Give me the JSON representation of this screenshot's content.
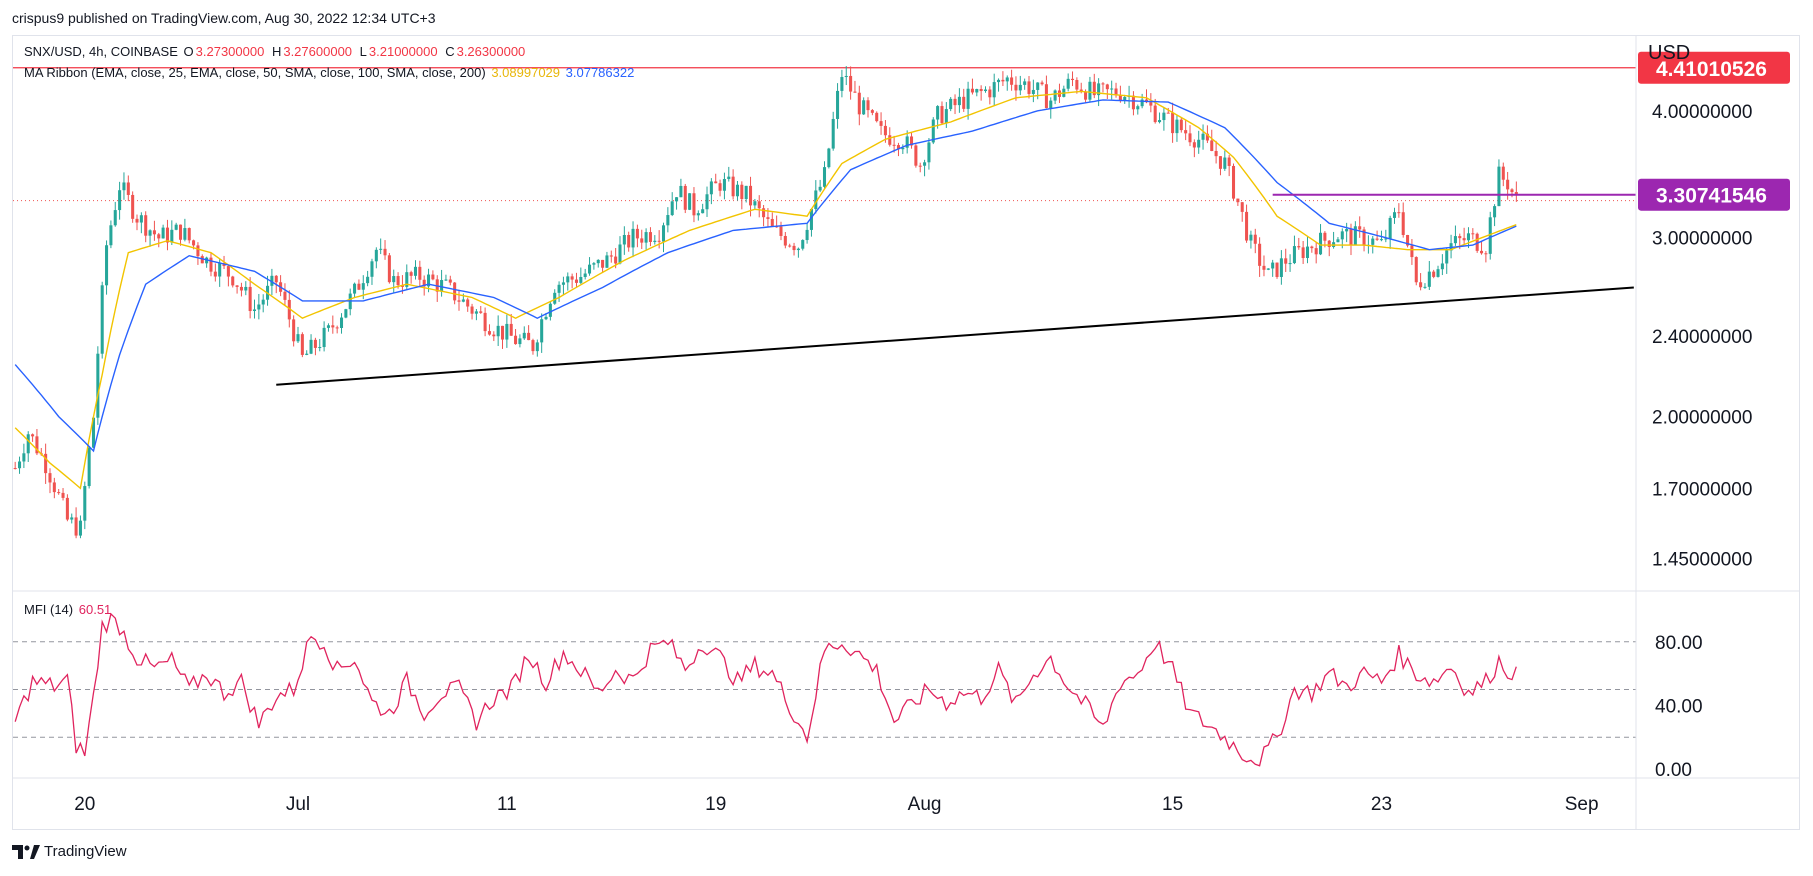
{
  "publisher": "crispus9 published on TradingView.com, Aug 30, 2022 12:34 UTC+3",
  "footer": {
    "brand": "TradingView"
  },
  "legend": {
    "symbol": "SNX/USD, 4h, COINBASE",
    "ohlc": [
      {
        "key": "O",
        "value": "3.27300000"
      },
      {
        "key": "H",
        "value": "3.27600000"
      },
      {
        "key": "L",
        "value": "3.21000000"
      },
      {
        "key": "C",
        "value": "3.26300000"
      }
    ],
    "ma_label": "MA Ribbon (EMA, close, 25, EMA, close, 50, SMA, close, 100, SMA, close, 200)",
    "ma_value_1": "3.08997029",
    "ma_value_2": "3.07786322",
    "mfi_label": "MFI (14)",
    "mfi_value": "60.51"
  },
  "colors": {
    "up": "#26a69a",
    "down": "#ef5350",
    "ema25": "#f2c400",
    "ema50": "#2962ff",
    "resistance": "#f23645",
    "range_line": "#9c27b0",
    "trendline": "#000000",
    "mfi": "#e0245e",
    "grid_dash": "#787b86"
  },
  "price_axis": {
    "currency": "USD",
    "ticks": [
      "4.00000000",
      "3.00000000",
      "2.40000000",
      "2.00000000",
      "1.70000000",
      "1.45000000"
    ],
    "tick_values": [
      4.0,
      3.0,
      2.4,
      2.0,
      1.7,
      1.45
    ],
    "badges": [
      {
        "label": "4.41010526",
        "value": 4.41010526,
        "color": "#f23645"
      },
      {
        "label": "3.30741546",
        "value": 3.30741546,
        "color": "#9c27b0"
      }
    ]
  },
  "mfi_axis": {
    "ticks": [
      "80.00",
      "40.00",
      "0.00"
    ],
    "tick_values": [
      80,
      40,
      0
    ],
    "bands": [
      80,
      50,
      20
    ]
  },
  "time_axis": {
    "labels": [
      {
        "text": "20",
        "bar": 16
      },
      {
        "text": "Jul",
        "bar": 65
      },
      {
        "text": "11",
        "bar": 113
      },
      {
        "text": "19",
        "bar": 161
      },
      {
        "text": "Aug",
        "bar": 209
      },
      {
        "text": "15",
        "bar": 266
      },
      {
        "text": "23",
        "bar": 314
      },
      {
        "text": "Sep",
        "bar": 360
      }
    ]
  },
  "chart_data": {
    "type": "candlestick",
    "title": "SNX/USD, 4h, COINBASE",
    "ylabel": "USD",
    "y_scale": "log",
    "ylim": [
      1.35,
      4.75
    ],
    "price_anchors": [
      [
        0,
        1.78
      ],
      [
        3,
        1.93
      ],
      [
        7,
        1.8
      ],
      [
        12,
        1.58
      ],
      [
        15,
        1.55
      ],
      [
        18,
        2.0
      ],
      [
        21,
        2.95
      ],
      [
        24,
        3.38
      ],
      [
        28,
        3.15
      ],
      [
        33,
        3.0
      ],
      [
        38,
        3.05
      ],
      [
        44,
        2.85
      ],
      [
        50,
        2.75
      ],
      [
        55,
        2.55
      ],
      [
        60,
        2.72
      ],
      [
        66,
        2.28
      ],
      [
        72,
        2.42
      ],
      [
        78,
        2.65
      ],
      [
        83,
        2.92
      ],
      [
        87,
        2.72
      ],
      [
        93,
        2.75
      ],
      [
        99,
        2.68
      ],
      [
        105,
        2.55
      ],
      [
        110,
        2.45
      ],
      [
        115,
        2.38
      ],
      [
        119,
        2.35
      ],
      [
        124,
        2.7
      ],
      [
        130,
        2.75
      ],
      [
        136,
        2.85
      ],
      [
        142,
        3.0
      ],
      [
        148,
        3.05
      ],
      [
        152,
        3.35
      ],
      [
        156,
        3.2
      ],
      [
        162,
        3.4
      ],
      [
        168,
        3.3
      ],
      [
        174,
        3.05
      ],
      [
        180,
        2.95
      ],
      [
        186,
        3.45
      ],
      [
        190,
        4.35
      ],
      [
        194,
        4.05
      ],
      [
        199,
        3.8
      ],
      [
        204,
        3.75
      ],
      [
        208,
        3.55
      ],
      [
        212,
        3.95
      ],
      [
        218,
        4.1
      ],
      [
        224,
        4.2
      ],
      [
        228,
        4.3
      ],
      [
        232,
        4.25
      ],
      [
        238,
        4.1
      ],
      [
        243,
        4.28
      ],
      [
        248,
        4.15
      ],
      [
        254,
        4.18
      ],
      [
        260,
        4.05
      ],
      [
        266,
        3.88
      ],
      [
        272,
        3.75
      ],
      [
        278,
        3.55
      ],
      [
        284,
        2.95
      ],
      [
        288,
        2.75
      ],
      [
        292,
        2.85
      ],
      [
        298,
        2.95
      ],
      [
        304,
        3.02
      ],
      [
        310,
        3.0
      ],
      [
        314,
        2.95
      ],
      [
        318,
        3.2
      ],
      [
        322,
        2.7
      ],
      [
        326,
        2.8
      ],
      [
        330,
        2.95
      ],
      [
        334,
        3.0
      ],
      [
        338,
        2.95
      ],
      [
        341,
        3.45
      ],
      [
        343,
        3.4
      ],
      [
        345,
        3.26
      ]
    ],
    "ema25_anchors": [
      [
        0,
        1.95
      ],
      [
        8,
        1.8
      ],
      [
        15,
        1.7
      ],
      [
        20,
        2.2
      ],
      [
        26,
        2.9
      ],
      [
        35,
        2.98
      ],
      [
        45,
        2.9
      ],
      [
        55,
        2.7
      ],
      [
        66,
        2.5
      ],
      [
        78,
        2.62
      ],
      [
        90,
        2.7
      ],
      [
        105,
        2.62
      ],
      [
        115,
        2.5
      ],
      [
        125,
        2.62
      ],
      [
        140,
        2.85
      ],
      [
        155,
        3.05
      ],
      [
        170,
        3.2
      ],
      [
        182,
        3.15
      ],
      [
        190,
        3.55
      ],
      [
        200,
        3.75
      ],
      [
        215,
        3.9
      ],
      [
        230,
        4.12
      ],
      [
        245,
        4.18
      ],
      [
        260,
        4.12
      ],
      [
        272,
        3.85
      ],
      [
        280,
        3.6
      ],
      [
        290,
        3.15
      ],
      [
        300,
        2.95
      ],
      [
        310,
        2.95
      ],
      [
        320,
        2.92
      ],
      [
        330,
        2.92
      ],
      [
        345,
        3.09
      ]
    ],
    "ema50_anchors": [
      [
        0,
        2.25
      ],
      [
        10,
        2.0
      ],
      [
        18,
        1.85
      ],
      [
        24,
        2.3
      ],
      [
        30,
        2.7
      ],
      [
        40,
        2.88
      ],
      [
        55,
        2.78
      ],
      [
        66,
        2.6
      ],
      [
        80,
        2.6
      ],
      [
        95,
        2.7
      ],
      [
        110,
        2.62
      ],
      [
        120,
        2.5
      ],
      [
        135,
        2.68
      ],
      [
        150,
        2.9
      ],
      [
        165,
        3.05
      ],
      [
        182,
        3.1
      ],
      [
        192,
        3.5
      ],
      [
        205,
        3.7
      ],
      [
        220,
        3.82
      ],
      [
        235,
        4.0
      ],
      [
        250,
        4.1
      ],
      [
        265,
        4.08
      ],
      [
        278,
        3.85
      ],
      [
        290,
        3.4
      ],
      [
        302,
        3.1
      ],
      [
        315,
        3.0
      ],
      [
        325,
        2.92
      ],
      [
        335,
        2.95
      ],
      [
        345,
        3.08
      ]
    ],
    "mfi_anchors": [
      [
        0,
        30
      ],
      [
        4,
        55
      ],
      [
        9,
        52
      ],
      [
        12,
        56
      ],
      [
        14,
        15
      ],
      [
        16,
        10
      ],
      [
        18,
        45
      ],
      [
        20,
        90
      ],
      [
        22,
        94
      ],
      [
        24,
        90
      ],
      [
        28,
        70
      ],
      [
        32,
        63
      ],
      [
        36,
        68
      ],
      [
        40,
        50
      ],
      [
        44,
        60
      ],
      [
        48,
        48
      ],
      [
        52,
        55
      ],
      [
        56,
        28
      ],
      [
        60,
        46
      ],
      [
        64,
        50
      ],
      [
        68,
        84
      ],
      [
        71,
        80
      ],
      [
        74,
        62
      ],
      [
        78,
        70
      ],
      [
        82,
        42
      ],
      [
        86,
        35
      ],
      [
        90,
        55
      ],
      [
        94,
        36
      ],
      [
        98,
        48
      ],
      [
        102,
        50
      ],
      [
        106,
        30
      ],
      [
        110,
        45
      ],
      [
        114,
        50
      ],
      [
        118,
        72
      ],
      [
        122,
        55
      ],
      [
        126,
        73
      ],
      [
        130,
        62
      ],
      [
        134,
        48
      ],
      [
        138,
        62
      ],
      [
        142,
        56
      ],
      [
        146,
        75
      ],
      [
        150,
        80
      ],
      [
        154,
        63
      ],
      [
        158,
        80
      ],
      [
        162,
        70
      ],
      [
        166,
        55
      ],
      [
        170,
        65
      ],
      [
        174,
        60
      ],
      [
        178,
        40
      ],
      [
        182,
        20
      ],
      [
        186,
        75
      ],
      [
        190,
        80
      ],
      [
        194,
        72
      ],
      [
        198,
        62
      ],
      [
        202,
        30
      ],
      [
        206,
        40
      ],
      [
        210,
        50
      ],
      [
        214,
        42
      ],
      [
        218,
        48
      ],
      [
        222,
        45
      ],
      [
        226,
        62
      ],
      [
        230,
        40
      ],
      [
        234,
        60
      ],
      [
        238,
        70
      ],
      [
        242,
        52
      ],
      [
        246,
        40
      ],
      [
        250,
        25
      ],
      [
        254,
        55
      ],
      [
        258,
        60
      ],
      [
        262,
        80
      ],
      [
        266,
        62
      ],
      [
        270,
        35
      ],
      [
        274,
        28
      ],
      [
        278,
        20
      ],
      [
        282,
        10
      ],
      [
        286,
        5
      ],
      [
        290,
        20
      ],
      [
        294,
        50
      ],
      [
        298,
        48
      ],
      [
        302,
        60
      ],
      [
        306,
        52
      ],
      [
        310,
        60
      ],
      [
        314,
        55
      ],
      [
        318,
        72
      ],
      [
        322,
        60
      ],
      [
        326,
        55
      ],
      [
        330,
        65
      ],
      [
        334,
        48
      ],
      [
        338,
        55
      ],
      [
        341,
        68
      ],
      [
        343,
        62
      ],
      [
        345,
        61
      ]
    ],
    "annotations": {
      "resistance_price": 4.41010526,
      "range_line": {
        "price": 3.30741546,
        "from_bar": 289,
        "to_bar": 372
      },
      "dotted_price": 3.263,
      "trendline": [
        {
          "bar": 60,
          "price": 2.15
        },
        {
          "bar": 372,
          "price": 2.68
        }
      ]
    },
    "bars": 346
  }
}
